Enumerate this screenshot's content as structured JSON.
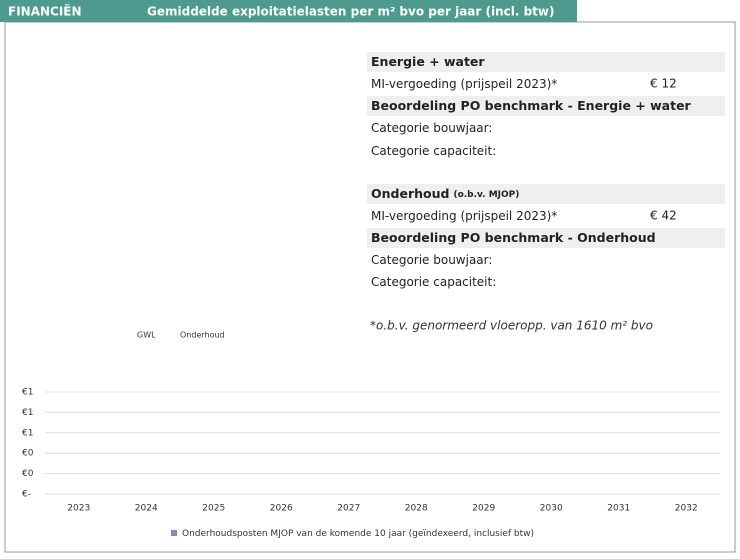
{
  "header": {
    "section": "FINANCIËN",
    "title": "Gemiddelde exploitatielasten per m² bvo per jaar (incl. btw)"
  },
  "panel": {
    "rows": [
      {
        "label": "Energie + water",
        "kind": "head"
      },
      {
        "label": "MI-vergoeding (prijspeil 2023)*",
        "value": "€ 12",
        "kind": "row"
      },
      {
        "label": "Beoordeling PO benchmark - Energie + water",
        "kind": "head"
      },
      {
        "label": "Categorie bouwjaar:",
        "kind": "row"
      },
      {
        "label": "Categorie capaciteit:",
        "kind": "row"
      },
      {
        "label": "Onderhoud",
        "sub": "(o.b.v. MJOP)",
        "kind": "head"
      },
      {
        "label": "MI-vergoeding (prijspeil 2023)*",
        "value": "€ 42",
        "kind": "row"
      },
      {
        "label": "Beoordeling PO benchmark - Onderhoud",
        "kind": "head"
      },
      {
        "label": "Categorie bouwjaar:",
        "kind": "row"
      },
      {
        "label": "Categorie capaciteit:",
        "kind": "row"
      }
    ],
    "footnote": "*o.b.v. genormeerd vloeropp. van 1610 m² bvo"
  },
  "small_legend": [
    "GWL",
    "Onderhoud"
  ],
  "chart_data": {
    "type": "bar",
    "categories": [
      "2023",
      "2024",
      "2025",
      "2026",
      "2027",
      "2028",
      "2029",
      "2030",
      "2031",
      "2032"
    ],
    "series": [
      {
        "name": "Onderhoudsposten MJOP van de komende 10 jaar (geïndexeerd, inclusief btw)",
        "color": "#9b7fb8",
        "values": [
          0,
          0,
          0,
          0,
          0,
          0,
          0,
          0,
          0,
          0
        ]
      }
    ],
    "ylim": [
      0,
      1
    ],
    "yticks": [
      {
        "value": 0,
        "label": "€-"
      },
      {
        "value": 0.2,
        "label": "€0"
      },
      {
        "value": 0.4,
        "label": "€0"
      },
      {
        "value": 0.6,
        "label": "€1"
      },
      {
        "value": 0.8,
        "label": "€1"
      },
      {
        "value": 1,
        "label": "€1"
      }
    ],
    "grid": true
  }
}
